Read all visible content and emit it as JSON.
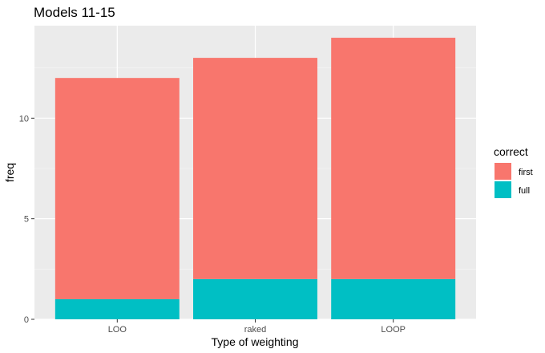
{
  "chart_data": {
    "type": "bar",
    "stacked": true,
    "title": "Models 11-15",
    "xlabel": "Type of weighting",
    "ylabel": "freq",
    "categories": [
      "LOO",
      "raked",
      "LOOP"
    ],
    "series": [
      {
        "name": "first",
        "color": "#F8766D",
        "values": [
          11,
          11,
          12
        ]
      },
      {
        "name": "full",
        "color": "#00BFC4",
        "values": [
          1,
          2,
          2
        ]
      }
    ],
    "y_ticks": [
      0,
      5,
      10
    ],
    "y_tick_labels": [
      "0",
      "5",
      "10"
    ],
    "ylim": [
      0,
      14.6
    ],
    "grid": true,
    "legend": {
      "title": "correct",
      "position": "right",
      "items": [
        {
          "label": "first",
          "color": "#F8766D"
        },
        {
          "label": "full",
          "color": "#00BFC4"
        }
      ]
    },
    "panel_background": "#EBEBEB"
  }
}
